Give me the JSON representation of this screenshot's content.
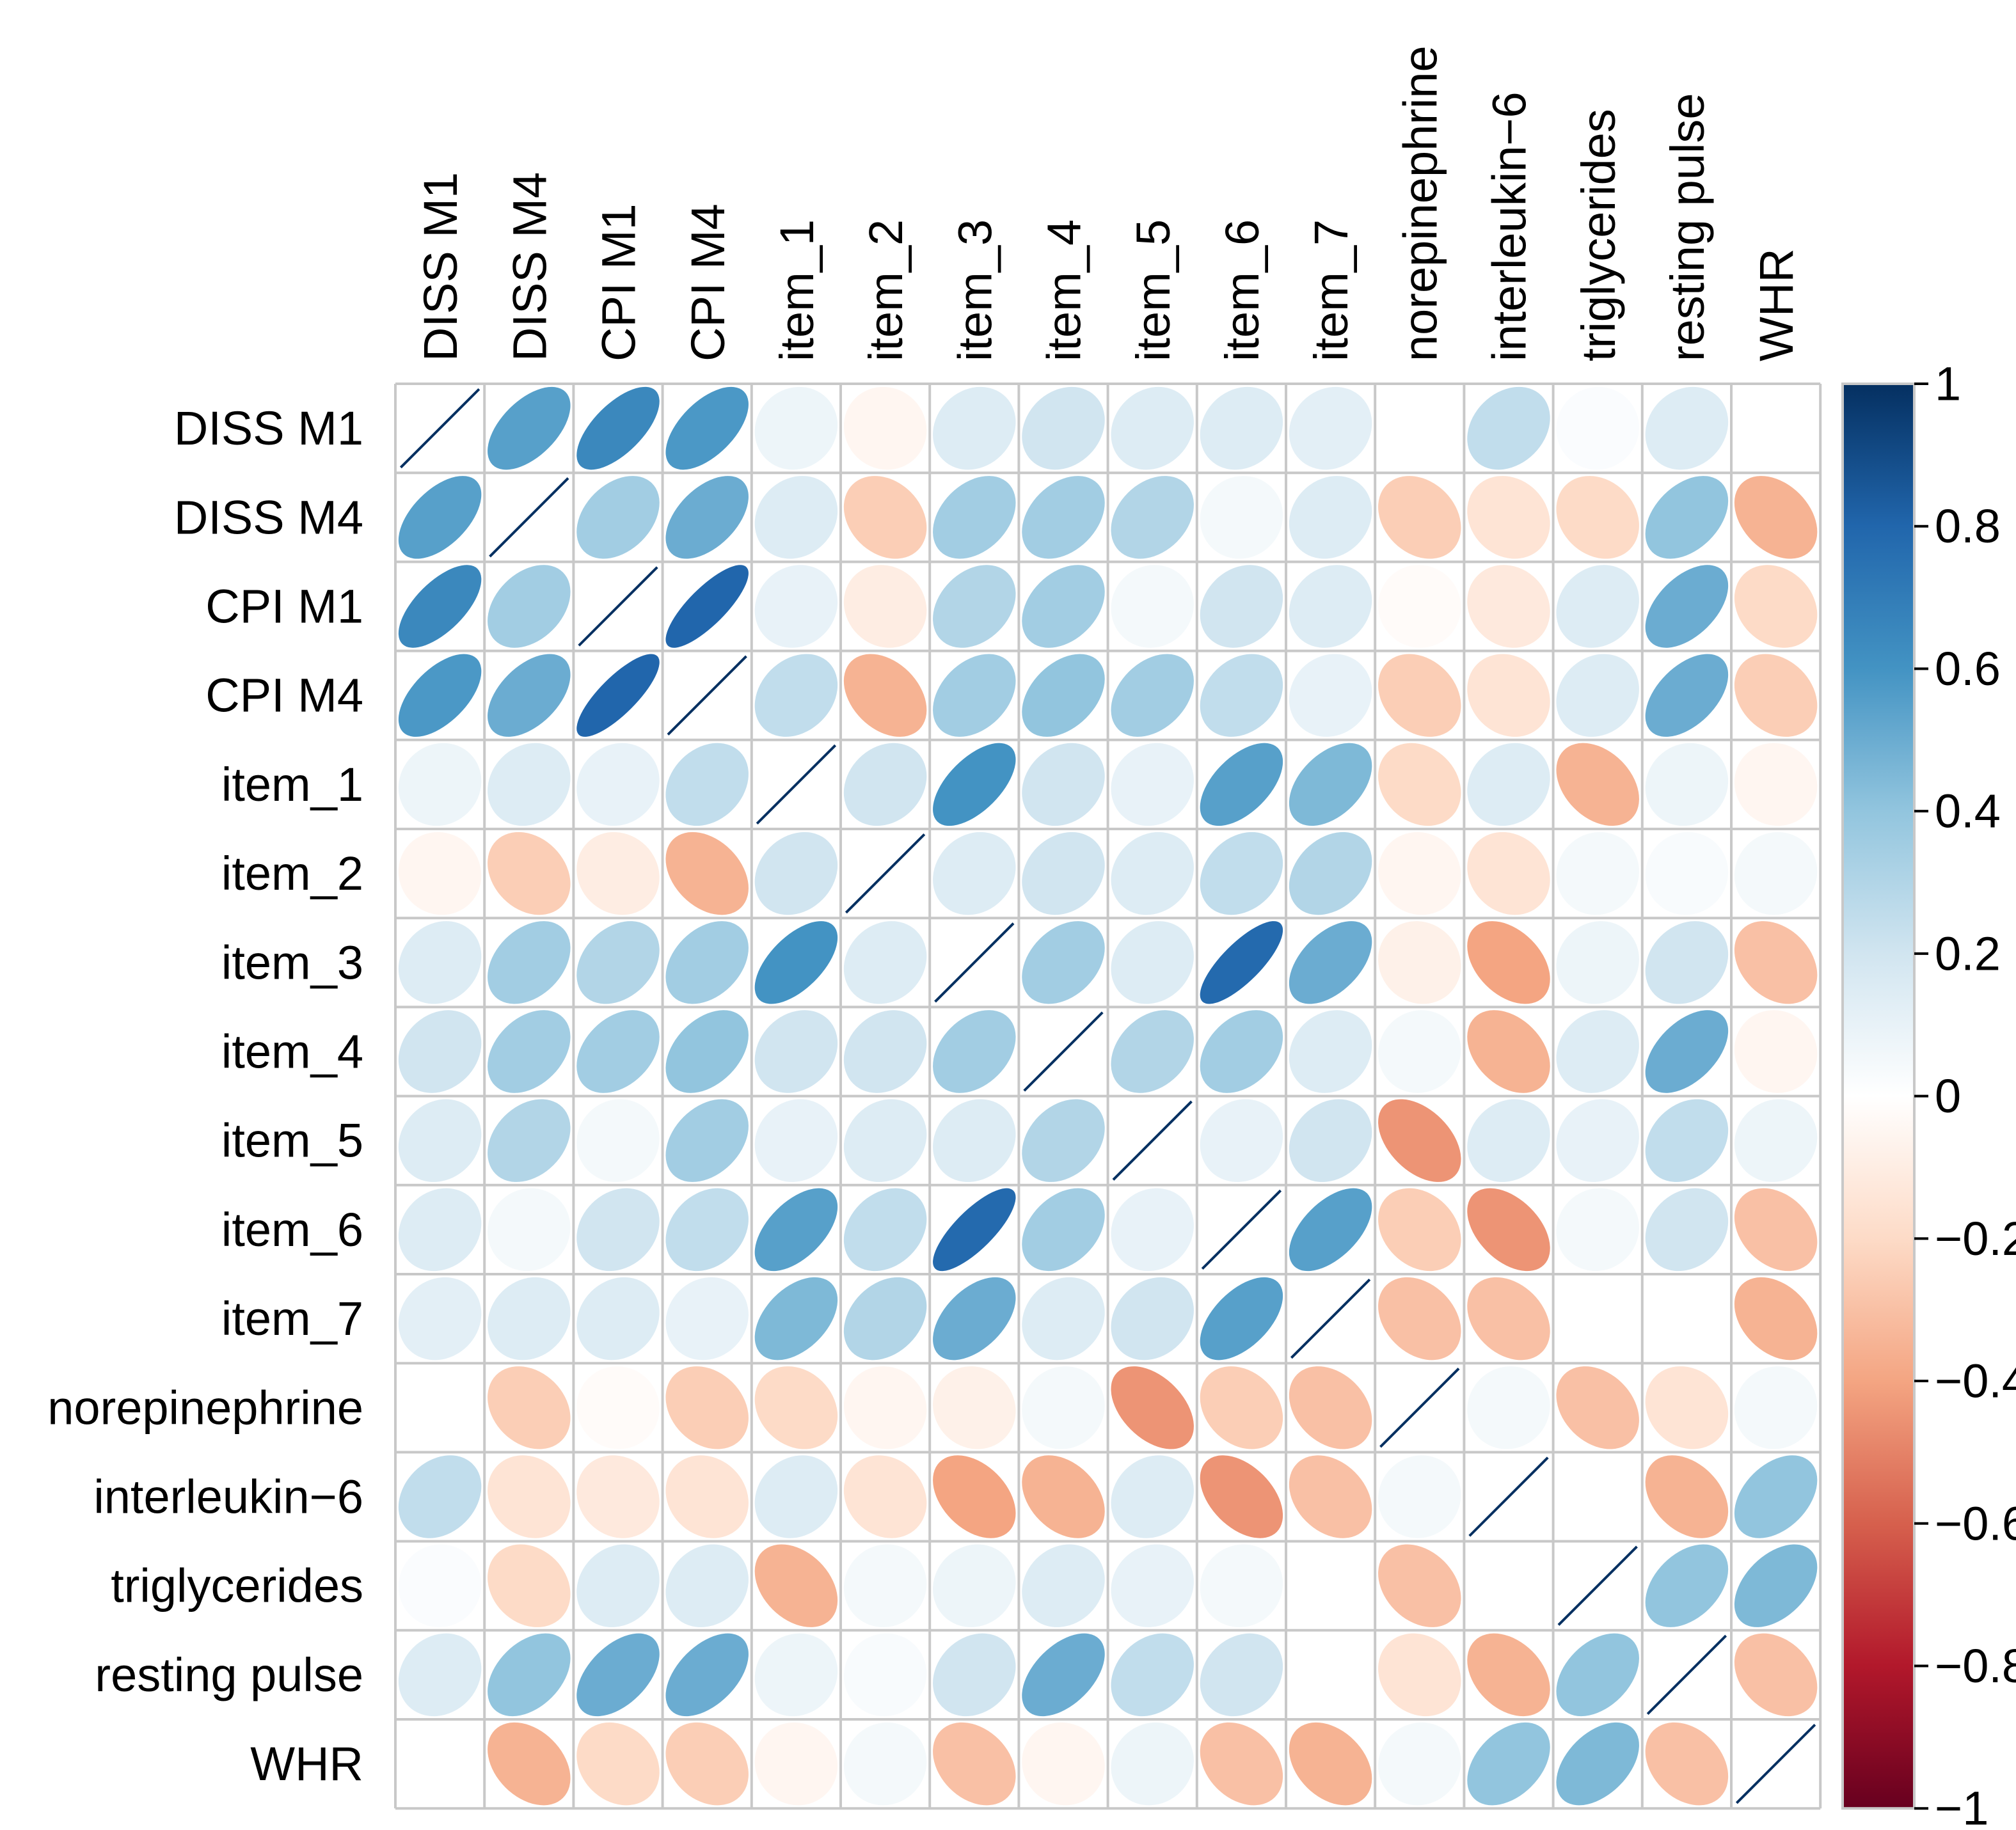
{
  "chart_data": {
    "type": "heatmap",
    "subtype": "correlation-ellipse",
    "labels": [
      "DISS M1",
      "DISS M4",
      "CPI M1",
      "CPI M4",
      "item_1",
      "item_2",
      "item_3",
      "item_4",
      "item_5",
      "item_6",
      "item_7",
      "norepinephrine",
      "interleukin−6",
      "triglycerides",
      "resting pulse",
      "WHR"
    ],
    "matrix": [
      [
        1.0,
        0.55,
        0.65,
        0.58,
        0.08,
        -0.05,
        0.15,
        0.2,
        0.15,
        0.15,
        0.12,
        0.0,
        0.25,
        0.02,
        0.15,
        0.0
      ],
      [
        0.55,
        1.0,
        0.35,
        0.5,
        0.15,
        -0.25,
        0.35,
        0.35,
        0.3,
        0.05,
        0.15,
        -0.25,
        -0.15,
        -0.2,
        0.4,
        -0.35
      ],
      [
        0.65,
        0.35,
        1.0,
        0.8,
        0.1,
        -0.1,
        0.3,
        0.35,
        0.05,
        0.2,
        0.15,
        -0.02,
        -0.12,
        0.15,
        0.5,
        -0.2
      ],
      [
        0.58,
        0.5,
        0.8,
        1.0,
        0.25,
        -0.35,
        0.35,
        0.4,
        0.35,
        0.25,
        0.1,
        -0.25,
        -0.15,
        0.15,
        0.5,
        -0.25
      ],
      [
        0.08,
        0.15,
        0.1,
        0.25,
        1.0,
        0.2,
        0.6,
        0.2,
        0.1,
        0.55,
        0.45,
        -0.2,
        0.15,
        -0.35,
        0.08,
        -0.05
      ],
      [
        -0.05,
        -0.25,
        -0.1,
        -0.35,
        0.2,
        1.0,
        0.15,
        0.2,
        0.15,
        0.25,
        0.3,
        -0.05,
        -0.15,
        0.05,
        0.03,
        0.05
      ],
      [
        0.15,
        0.35,
        0.3,
        0.35,
        0.6,
        0.15,
        1.0,
        0.35,
        0.15,
        0.78,
        0.5,
        -0.08,
        -0.4,
        0.08,
        0.2,
        -0.3
      ],
      [
        0.2,
        0.35,
        0.35,
        0.4,
        0.2,
        0.2,
        0.35,
        1.0,
        0.3,
        0.35,
        0.15,
        0.05,
        -0.35,
        0.15,
        0.5,
        -0.05
      ],
      [
        0.15,
        0.3,
        0.05,
        0.35,
        0.1,
        0.15,
        0.15,
        0.3,
        1.0,
        0.1,
        0.2,
        -0.45,
        0.15,
        0.1,
        0.25,
        0.08
      ],
      [
        0.15,
        0.05,
        0.2,
        0.25,
        0.55,
        0.25,
        0.78,
        0.35,
        0.1,
        1.0,
        0.55,
        -0.25,
        -0.45,
        0.05,
        0.2,
        -0.3
      ],
      [
        0.12,
        0.15,
        0.15,
        0.1,
        0.45,
        0.3,
        0.5,
        0.15,
        0.2,
        0.55,
        1.0,
        -0.3,
        -0.3,
        0.0,
        0.0,
        -0.35
      ],
      [
        0.0,
        -0.25,
        -0.02,
        -0.25,
        -0.2,
        -0.05,
        -0.08,
        0.05,
        -0.45,
        -0.25,
        -0.3,
        1.0,
        0.05,
        -0.3,
        -0.15,
        0.05
      ],
      [
        0.25,
        -0.15,
        -0.12,
        -0.15,
        0.15,
        -0.15,
        -0.4,
        -0.35,
        0.15,
        -0.45,
        -0.3,
        0.05,
        1.0,
        0.0,
        -0.35,
        0.4
      ],
      [
        0.02,
        -0.2,
        0.15,
        0.15,
        -0.35,
        0.05,
        0.08,
        0.15,
        0.1,
        0.05,
        0.0,
        -0.3,
        0.0,
        1.0,
        0.4,
        0.45
      ],
      [
        0.15,
        0.4,
        0.5,
        0.5,
        0.08,
        0.03,
        0.2,
        0.5,
        0.25,
        0.2,
        0.0,
        -0.15,
        -0.35,
        0.4,
        1.0,
        -0.3
      ],
      [
        0.0,
        -0.35,
        -0.2,
        -0.25,
        -0.05,
        0.05,
        -0.3,
        -0.05,
        0.08,
        -0.3,
        -0.35,
        0.05,
        0.4,
        0.45,
        -0.3,
        1.0
      ]
    ],
    "colorbar": {
      "range": [
        -1,
        1
      ],
      "ticks": [
        1,
        0.8,
        0.6,
        0.4,
        0.2,
        0,
        -0.2,
        -0.4,
        -0.6,
        -0.8,
        -1
      ],
      "tick_labels": [
        "1",
        "0.8",
        "0.6",
        "0.4",
        "0.2",
        "0",
        "−0.2",
        "−0.4",
        "−0.6",
        "−0.8",
        "−1"
      ]
    },
    "palette": {
      "stops": [
        "#67001F",
        "#B2182B",
        "#D6604D",
        "#F4A582",
        "#FDDBC7",
        "#FFFFFF",
        "#D1E5F0",
        "#92C5DE",
        "#4393C3",
        "#2166AC",
        "#053061"
      ],
      "grid": "#C8C8C8",
      "diagonal_line": "#053061"
    },
    "title": "",
    "xlabel": "",
    "ylabel": "",
    "legend": "right"
  }
}
